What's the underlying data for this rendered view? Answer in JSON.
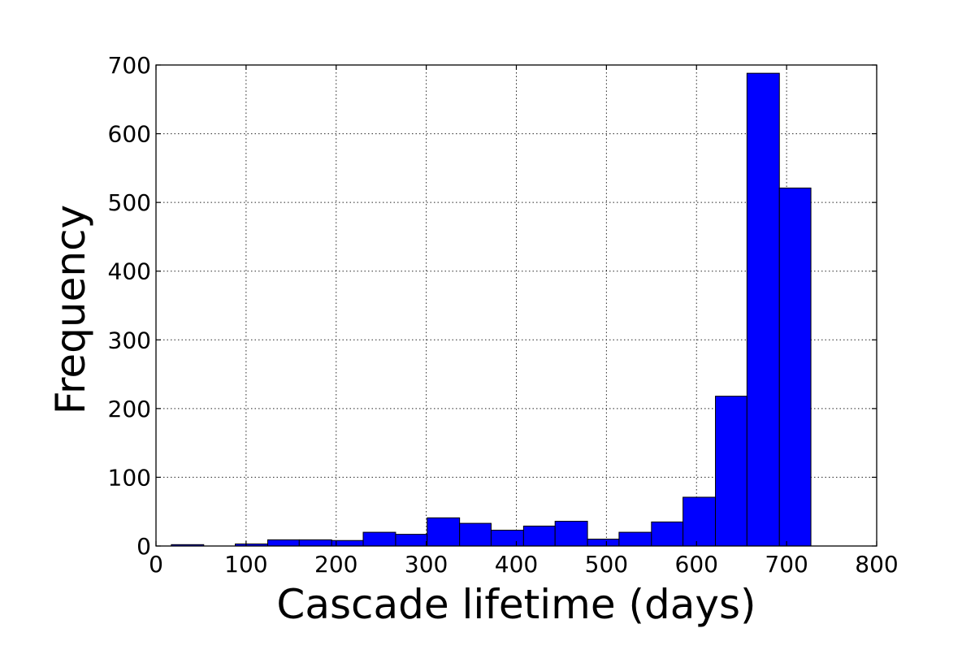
{
  "chart_data": {
    "type": "bar",
    "subtype": "histogram",
    "xlabel": "Cascade lifetime (days)",
    "ylabel": "Frequency",
    "xlim": [
      0,
      800
    ],
    "ylim": [
      0,
      700
    ],
    "xticks": [
      0,
      100,
      200,
      300,
      400,
      500,
      600,
      700,
      800
    ],
    "yticks": [
      0,
      100,
      200,
      300,
      400,
      500,
      600,
      700
    ],
    "grid": true,
    "bar_color": "#0000ff",
    "bins": [
      {
        "start": 17,
        "end": 53,
        "count": 2
      },
      {
        "start": 53,
        "end": 88,
        "count": 0
      },
      {
        "start": 88,
        "end": 124,
        "count": 3
      },
      {
        "start": 124,
        "end": 159,
        "count": 9
      },
      {
        "start": 159,
        "end": 195,
        "count": 9
      },
      {
        "start": 195,
        "end": 230,
        "count": 8
      },
      {
        "start": 230,
        "end": 266,
        "count": 20
      },
      {
        "start": 266,
        "end": 301,
        "count": 17
      },
      {
        "start": 301,
        "end": 337,
        "count": 41
      },
      {
        "start": 337,
        "end": 372,
        "count": 33
      },
      {
        "start": 372,
        "end": 408,
        "count": 23
      },
      {
        "start": 408,
        "end": 443,
        "count": 29
      },
      {
        "start": 443,
        "end": 479,
        "count": 36
      },
      {
        "start": 479,
        "end": 514,
        "count": 10
      },
      {
        "start": 514,
        "end": 550,
        "count": 20
      },
      {
        "start": 550,
        "end": 585,
        "count": 35
      },
      {
        "start": 585,
        "end": 621,
        "count": 71
      },
      {
        "start": 621,
        "end": 656,
        "count": 218
      },
      {
        "start": 656,
        "end": 692,
        "count": 688
      },
      {
        "start": 692,
        "end": 727,
        "count": 521
      }
    ]
  }
}
